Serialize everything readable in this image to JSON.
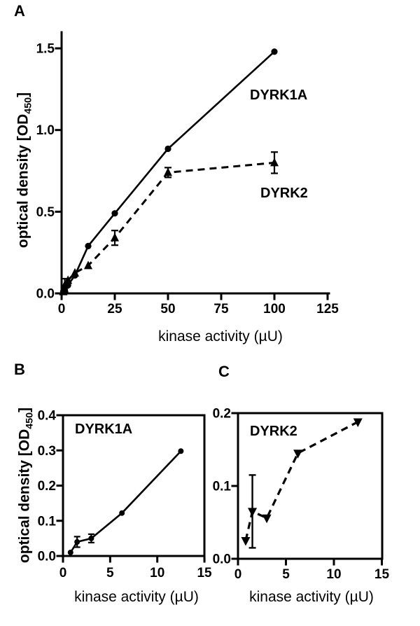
{
  "figure": {
    "background": "#ffffff",
    "ink_color": "#000000"
  },
  "chart_data": [
    {
      "panel": "A",
      "panel_label": "A",
      "type": "line",
      "xlabel": "kinase activity (µU)",
      "ylabel": "optical density [OD450]",
      "ylabel_parts": {
        "pre": "optical density [OD",
        "sub": "450",
        "post": "]"
      },
      "xlim": [
        0,
        125
      ],
      "ylim": [
        0,
        1.5
      ],
      "xticks": [
        0,
        25,
        50,
        75,
        100,
        125
      ],
      "yticks": [
        0,
        0.5,
        1.0,
        1.5
      ],
      "ytick_labels": [
        "0.0",
        "0.5",
        "1.0",
        "1.5"
      ],
      "grid": false,
      "frame": "L-axes",
      "legend": "inline-annotations",
      "series": [
        {
          "name": "DYRK1A",
          "marker": "circle",
          "linestyle": "solid",
          "x": [
            0.8,
            1.5,
            3,
            6.25,
            12.5,
            25,
            50,
            100
          ],
          "y": [
            0.01,
            0.02,
            0.05,
            0.11,
            0.29,
            0.49,
            0.885,
            1.48
          ],
          "yerr": [
            0,
            0,
            0,
            0,
            0,
            0,
            0,
            0
          ]
        },
        {
          "name": "DYRK2",
          "marker": "triangle-up",
          "linestyle": "dashed",
          "x": [
            0.8,
            1.5,
            3,
            6.25,
            12.5,
            25,
            50,
            100
          ],
          "y": [
            0.01,
            0.05,
            0.08,
            0.125,
            0.17,
            0.34,
            0.74,
            0.8
          ],
          "yerr": [
            0,
            0.04,
            0,
            0,
            0,
            0.045,
            0.03,
            0.065
          ]
        }
      ]
    },
    {
      "panel": "B",
      "panel_label": "B",
      "type": "line",
      "xlabel": "kinase activity (µU)",
      "ylabel": "optical density [OD450]",
      "ylabel_parts": {
        "pre": "optical density [OD",
        "sub": "450",
        "post": "]"
      },
      "xlim": [
        0,
        15
      ],
      "ylim": [
        0,
        0.4
      ],
      "xticks": [
        0,
        5,
        10,
        15
      ],
      "yticks": [
        0,
        0.1,
        0.2,
        0.3,
        0.4
      ],
      "ytick_labels": [
        "0.0",
        "0.1",
        "0.2",
        "0.3",
        "0.4"
      ],
      "grid": false,
      "frame": "box",
      "legend": "inline-annotations",
      "series": [
        {
          "name": "DYRK1A",
          "marker": "circle",
          "linestyle": "solid",
          "x": [
            0.8,
            1.5,
            3,
            6.25,
            12.5
          ],
          "y": [
            0.01,
            0.04,
            0.05,
            0.122,
            0.298
          ],
          "yerr": [
            0,
            0.015,
            0.012,
            0,
            0
          ]
        }
      ]
    },
    {
      "panel": "C",
      "panel_label": "C",
      "type": "line",
      "xlabel": "kinase activity (µU)",
      "ylabel": "",
      "xlim": [
        0,
        15
      ],
      "ylim": [
        0,
        0.2
      ],
      "xticks": [
        0,
        5,
        10,
        15
      ],
      "yticks": [
        0,
        0.1,
        0.2
      ],
      "ytick_labels": [
        "0.0",
        "0.1",
        "0.2"
      ],
      "grid": false,
      "frame": "box",
      "legend": "inline-annotations",
      "series": [
        {
          "name": "DYRK2",
          "marker": "triangle-down",
          "linestyle": "dashed",
          "x": [
            0.8,
            1.5,
            3,
            6.25,
            12.5
          ],
          "y": [
            0.025,
            0.065,
            0.056,
            0.145,
            0.188
          ],
          "yerr": [
            0,
            0.05,
            0,
            0,
            0
          ]
        }
      ]
    }
  ]
}
